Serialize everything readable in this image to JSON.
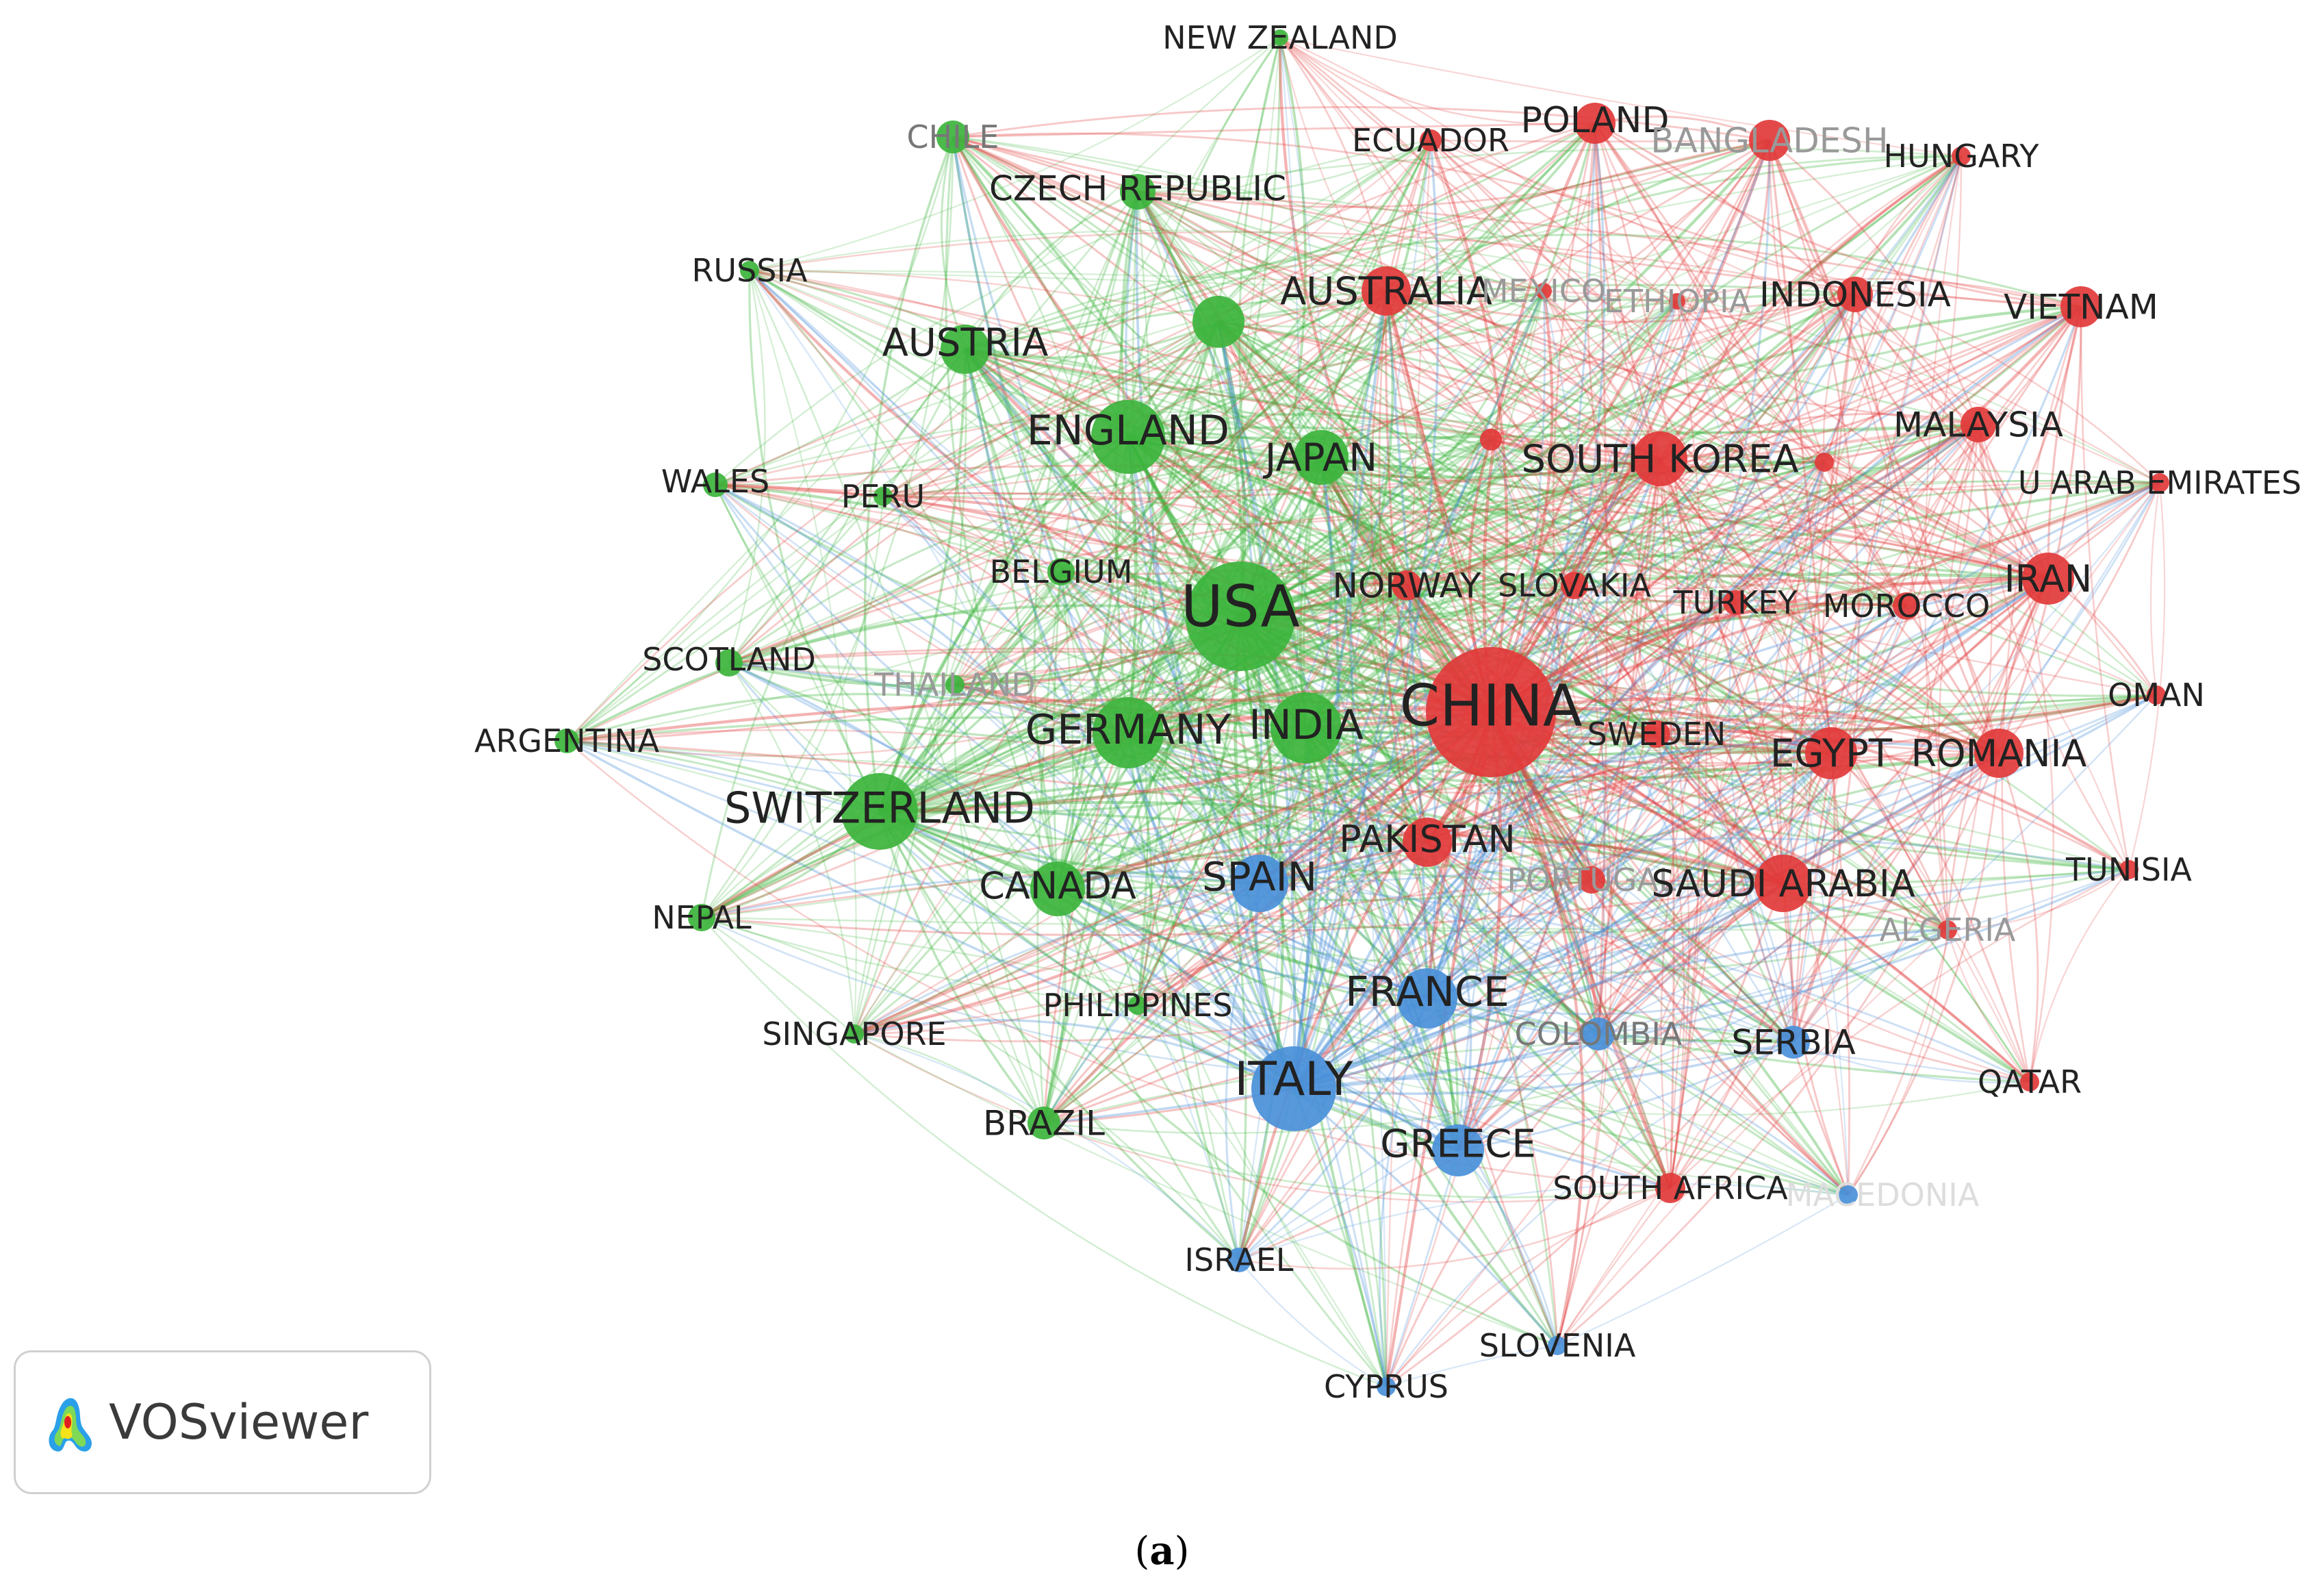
{
  "app_name": "VOSviewer",
  "caption": {
    "open": "(",
    "letter": "a",
    "close": ")"
  },
  "colors": {
    "green": "#3cb43c",
    "red": "#e23a3a",
    "blue": "#4a90d9"
  },
  "nodes": [
    {
      "id": "new-zealand",
      "label": "NEW ZEALAND",
      "cluster": "green"
    },
    {
      "id": "chile",
      "label": "CHILE",
      "cluster": "green"
    },
    {
      "id": "czech-republic",
      "label": "CZECH REPUBLIC",
      "cluster": "green"
    },
    {
      "id": "russia",
      "label": "RUSSIA",
      "cluster": "green"
    },
    {
      "id": "austria",
      "label": "AUSTRIA",
      "cluster": "green"
    },
    {
      "id": "unlabeled-green",
      "label": "",
      "cluster": "green"
    },
    {
      "id": "england",
      "label": "ENGLAND",
      "cluster": "green"
    },
    {
      "id": "japan",
      "label": "JAPAN",
      "cluster": "green"
    },
    {
      "id": "wales",
      "label": "WALES",
      "cluster": "green"
    },
    {
      "id": "peru",
      "label": "PERU",
      "cluster": "green"
    },
    {
      "id": "belgium",
      "label": "BELGIUM",
      "cluster": "green"
    },
    {
      "id": "usa",
      "label": "USA",
      "cluster": "green"
    },
    {
      "id": "scotland",
      "label": "SCOTLAND",
      "cluster": "green"
    },
    {
      "id": "thailand",
      "label": "THAILAND",
      "cluster": "green"
    },
    {
      "id": "argentina",
      "label": "ARGENTINA",
      "cluster": "green"
    },
    {
      "id": "germany",
      "label": "GERMANY",
      "cluster": "green"
    },
    {
      "id": "india",
      "label": "INDIA",
      "cluster": "green"
    },
    {
      "id": "switzerland",
      "label": "SWITZERLAND",
      "cluster": "green"
    },
    {
      "id": "canada",
      "label": "CANADA",
      "cluster": "green"
    },
    {
      "id": "nepal",
      "label": "NEPAL",
      "cluster": "green"
    },
    {
      "id": "philippines",
      "label": "PHILIPPINES",
      "cluster": "green"
    },
    {
      "id": "singapore",
      "label": "SINGAPORE",
      "cluster": "green"
    },
    {
      "id": "brazil",
      "label": "BRAZIL",
      "cluster": "green"
    },
    {
      "id": "ecuador",
      "label": "ECUADOR",
      "cluster": "red"
    },
    {
      "id": "poland",
      "label": "POLAND",
      "cluster": "red"
    },
    {
      "id": "bangladesh",
      "label": "BANGLADESH",
      "cluster": "red"
    },
    {
      "id": "hungary",
      "label": "HUNGARY",
      "cluster": "red"
    },
    {
      "id": "australia",
      "label": "AUSTRALIA",
      "cluster": "red"
    },
    {
      "id": "mexico",
      "label": "MEXICO",
      "cluster": "red"
    },
    {
      "id": "ethiopia",
      "label": "ETHIOPIA",
      "cluster": "red"
    },
    {
      "id": "indonesia",
      "label": "INDONESIA",
      "cluster": "red"
    },
    {
      "id": "vietnam",
      "label": "VIETNAM",
      "cluster": "red"
    },
    {
      "id": "unlabeled-red-1",
      "label": "",
      "cluster": "red"
    },
    {
      "id": "south-korea",
      "label": "SOUTH KOREA",
      "cluster": "red"
    },
    {
      "id": "unlabeled-red-2",
      "label": "",
      "cluster": "red"
    },
    {
      "id": "malaysia",
      "label": "MALAYSIA",
      "cluster": "red"
    },
    {
      "id": "u-arab-emirates",
      "label": "U ARAB EMIRATES",
      "cluster": "red"
    },
    {
      "id": "norway",
      "label": "NORWAY",
      "cluster": "red"
    },
    {
      "id": "slovakia",
      "label": "SLOVAKIA",
      "cluster": "red"
    },
    {
      "id": "turkey",
      "label": "TURKEY",
      "cluster": "red"
    },
    {
      "id": "morocco",
      "label": "MOROCCO",
      "cluster": "red"
    },
    {
      "id": "iran",
      "label": "IRAN",
      "cluster": "red"
    },
    {
      "id": "china",
      "label": "CHINA",
      "cluster": "red"
    },
    {
      "id": "oman",
      "label": "OMAN",
      "cluster": "red"
    },
    {
      "id": "sweden",
      "label": "SWEDEN",
      "cluster": "red"
    },
    {
      "id": "egypt",
      "label": "EGYPT",
      "cluster": "red"
    },
    {
      "id": "romania",
      "label": "ROMANIA",
      "cluster": "red"
    },
    {
      "id": "pakistan",
      "label": "PAKISTAN",
      "cluster": "red"
    },
    {
      "id": "portugal",
      "label": "PORTUGAL",
      "cluster": "red"
    },
    {
      "id": "saudi-arabia",
      "label": "SAUDI ARABIA",
      "cluster": "red"
    },
    {
      "id": "tunisia",
      "label": "TUNISIA",
      "cluster": "red"
    },
    {
      "id": "algeria",
      "label": "ALGERIA",
      "cluster": "red"
    },
    {
      "id": "qatar",
      "label": "QATAR",
      "cluster": "red"
    },
    {
      "id": "south-africa",
      "label": "SOUTH AFRICA",
      "cluster": "red"
    },
    {
      "id": "spain",
      "label": "SPAIN",
      "cluster": "blue"
    },
    {
      "id": "france",
      "label": "FRANCE",
      "cluster": "blue"
    },
    {
      "id": "colombia",
      "label": "COLOMBIA",
      "cluster": "blue"
    },
    {
      "id": "serbia",
      "label": "SERBIA",
      "cluster": "blue"
    },
    {
      "id": "italy",
      "label": "ITALY",
      "cluster": "blue"
    },
    {
      "id": "greece",
      "label": "GREECE",
      "cluster": "blue"
    },
    {
      "id": "macedonia",
      "label": "MACEDONIA",
      "cluster": "blue"
    },
    {
      "id": "israel",
      "label": "ISRAEL",
      "cluster": "blue"
    },
    {
      "id": "slovenia",
      "label": "SLOVENIA",
      "cluster": "blue"
    },
    {
      "id": "cyprus",
      "label": "CYPRUS",
      "cluster": "blue"
    }
  ]
}
